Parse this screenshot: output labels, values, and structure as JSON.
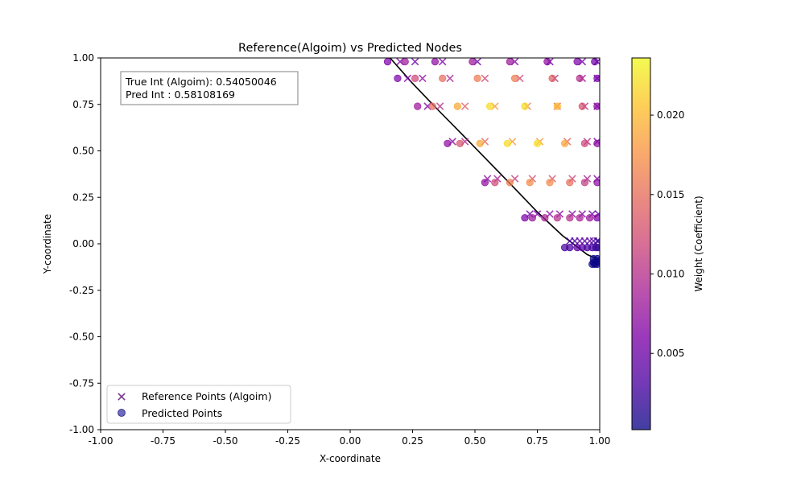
{
  "chart_data": {
    "type": "scatter",
    "title": "Reference(Algoim) vs Predicted Nodes",
    "xlabel": "X-coordinate",
    "ylabel": "Y-coordinate",
    "xlim": [
      -1.0,
      1.0
    ],
    "ylim": [
      -1.0,
      1.0
    ],
    "x_ticks": [
      "-1.00",
      "-0.75",
      "-0.50",
      "-0.25",
      "0.00",
      "0.25",
      "0.50",
      "0.75",
      "1.00"
    ],
    "y_ticks": [
      "-1.00",
      "-0.75",
      "-0.50",
      "-0.25",
      "0.00",
      "0.25",
      "0.50",
      "0.75",
      "1.00"
    ],
    "grid": false,
    "legend_position": "lower-left",
    "annotation": [
      "True Int (Algoim): 0.54050046",
      "Pred Int : 0.58108169"
    ],
    "colorbar": {
      "label": "Weight (Coefficient)",
      "colormap": "plasma",
      "range": [
        0.0002,
        0.0236
      ],
      "ticks": [
        0.005,
        0.01,
        0.015,
        0.02
      ],
      "tick_labels": [
        "0.005",
        "0.010",
        "0.015",
        "0.020"
      ]
    },
    "boundary_curve": {
      "color": "#000000",
      "x": [
        0.16,
        0.25,
        0.35,
        0.45,
        0.55,
        0.65,
        0.75,
        0.85,
        0.95,
        1.0
      ],
      "y": [
        1.0,
        0.863,
        0.723,
        0.587,
        0.449,
        0.311,
        0.171,
        0.045,
        -0.058,
        -0.087
      ]
    },
    "series": [
      {
        "name": "Reference Points (Algoim)",
        "marker": "x",
        "points": [
          {
            "x": 0.2,
            "y": 0.98,
            "w": 0.006
          },
          {
            "x": 0.26,
            "y": 0.98,
            "w": 0.005
          },
          {
            "x": 0.37,
            "y": 0.98,
            "w": 0.006
          },
          {
            "x": 0.51,
            "y": 0.98,
            "w": 0.005
          },
          {
            "x": 0.66,
            "y": 0.98,
            "w": 0.006
          },
          {
            "x": 0.8,
            "y": 0.98,
            "w": 0.005
          },
          {
            "x": 0.93,
            "y": 0.98,
            "w": 0.005
          },
          {
            "x": 0.99,
            "y": 0.98,
            "w": 0.004
          },
          {
            "x": 0.23,
            "y": 0.89,
            "w": 0.006
          },
          {
            "x": 0.29,
            "y": 0.89,
            "w": 0.007
          },
          {
            "x": 0.4,
            "y": 0.89,
            "w": 0.009
          },
          {
            "x": 0.54,
            "y": 0.89,
            "w": 0.012
          },
          {
            "x": 0.68,
            "y": 0.89,
            "w": 0.012
          },
          {
            "x": 0.82,
            "y": 0.89,
            "w": 0.01
          },
          {
            "x": 0.93,
            "y": 0.89,
            "w": 0.008
          },
          {
            "x": 0.99,
            "y": 0.89,
            "w": 0.005
          },
          {
            "x": 0.31,
            "y": 0.74,
            "w": 0.006
          },
          {
            "x": 0.36,
            "y": 0.74,
            "w": 0.01
          },
          {
            "x": 0.46,
            "y": 0.74,
            "w": 0.014
          },
          {
            "x": 0.58,
            "y": 0.74,
            "w": 0.018
          },
          {
            "x": 0.71,
            "y": 0.74,
            "w": 0.016
          },
          {
            "x": 0.83,
            "y": 0.74,
            "w": 0.014
          },
          {
            "x": 0.94,
            "y": 0.74,
            "w": 0.01
          },
          {
            "x": 0.99,
            "y": 0.74,
            "w": 0.006
          },
          {
            "x": 0.41,
            "y": 0.55,
            "w": 0.007
          },
          {
            "x": 0.46,
            "y": 0.55,
            "w": 0.01
          },
          {
            "x": 0.54,
            "y": 0.55,
            "w": 0.015
          },
          {
            "x": 0.65,
            "y": 0.55,
            "w": 0.018
          },
          {
            "x": 0.76,
            "y": 0.55,
            "w": 0.018
          },
          {
            "x": 0.87,
            "y": 0.55,
            "w": 0.014
          },
          {
            "x": 0.95,
            "y": 0.55,
            "w": 0.01
          },
          {
            "x": 0.99,
            "y": 0.55,
            "w": 0.006
          },
          {
            "x": 0.55,
            "y": 0.35,
            "w": 0.007
          },
          {
            "x": 0.59,
            "y": 0.35,
            "w": 0.009
          },
          {
            "x": 0.66,
            "y": 0.35,
            "w": 0.011
          },
          {
            "x": 0.73,
            "y": 0.35,
            "w": 0.013
          },
          {
            "x": 0.81,
            "y": 0.35,
            "w": 0.013
          },
          {
            "x": 0.89,
            "y": 0.35,
            "w": 0.012
          },
          {
            "x": 0.95,
            "y": 0.35,
            "w": 0.009
          },
          {
            "x": 0.99,
            "y": 0.35,
            "w": 0.006
          },
          {
            "x": 0.72,
            "y": 0.16,
            "w": 0.005
          },
          {
            "x": 0.75,
            "y": 0.16,
            "w": 0.006
          },
          {
            "x": 0.8,
            "y": 0.16,
            "w": 0.007
          },
          {
            "x": 0.84,
            "y": 0.16,
            "w": 0.007
          },
          {
            "x": 0.89,
            "y": 0.16,
            "w": 0.007
          },
          {
            "x": 0.93,
            "y": 0.16,
            "w": 0.006
          },
          {
            "x": 0.97,
            "y": 0.16,
            "w": 0.005
          },
          {
            "x": 0.995,
            "y": 0.16,
            "w": 0.004
          },
          {
            "x": 0.88,
            "y": 0.015,
            "w": 0.003
          },
          {
            "x": 0.9,
            "y": 0.015,
            "w": 0.003
          },
          {
            "x": 0.92,
            "y": 0.015,
            "w": 0.004
          },
          {
            "x": 0.94,
            "y": 0.015,
            "w": 0.004
          },
          {
            "x": 0.96,
            "y": 0.015,
            "w": 0.004
          },
          {
            "x": 0.975,
            "y": 0.015,
            "w": 0.003
          },
          {
            "x": 0.99,
            "y": 0.015,
            "w": 0.003
          },
          {
            "x": 0.995,
            "y": 0.015,
            "w": 0.002
          }
        ]
      },
      {
        "name": "Predicted Points",
        "marker": "o",
        "points": [
          {
            "x": 0.15,
            "y": 0.98,
            "w": 0.006
          },
          {
            "x": 0.22,
            "y": 0.98,
            "w": 0.008
          },
          {
            "x": 0.34,
            "y": 0.98,
            "w": 0.007
          },
          {
            "x": 0.49,
            "y": 0.98,
            "w": 0.008
          },
          {
            "x": 0.64,
            "y": 0.98,
            "w": 0.008
          },
          {
            "x": 0.79,
            "y": 0.98,
            "w": 0.007
          },
          {
            "x": 0.91,
            "y": 0.98,
            "w": 0.006
          },
          {
            "x": 0.98,
            "y": 0.98,
            "w": 0.005
          },
          {
            "x": 0.19,
            "y": 0.89,
            "w": 0.006
          },
          {
            "x": 0.26,
            "y": 0.89,
            "w": 0.012
          },
          {
            "x": 0.37,
            "y": 0.89,
            "w": 0.015
          },
          {
            "x": 0.51,
            "y": 0.89,
            "w": 0.016
          },
          {
            "x": 0.66,
            "y": 0.89,
            "w": 0.016
          },
          {
            "x": 0.81,
            "y": 0.89,
            "w": 0.014
          },
          {
            "x": 0.92,
            "y": 0.89,
            "w": 0.01
          },
          {
            "x": 0.99,
            "y": 0.89,
            "w": 0.006
          },
          {
            "x": 0.27,
            "y": 0.74,
            "w": 0.008
          },
          {
            "x": 0.33,
            "y": 0.74,
            "w": 0.015
          },
          {
            "x": 0.43,
            "y": 0.74,
            "w": 0.019
          },
          {
            "x": 0.56,
            "y": 0.74,
            "w": 0.022
          },
          {
            "x": 0.7,
            "y": 0.74,
            "w": 0.022
          },
          {
            "x": 0.83,
            "y": 0.74,
            "w": 0.02
          },
          {
            "x": 0.93,
            "y": 0.74,
            "w": 0.013
          },
          {
            "x": 0.99,
            "y": 0.74,
            "w": 0.007
          },
          {
            "x": 0.39,
            "y": 0.54,
            "w": 0.007
          },
          {
            "x": 0.44,
            "y": 0.54,
            "w": 0.013
          },
          {
            "x": 0.52,
            "y": 0.54,
            "w": 0.019
          },
          {
            "x": 0.63,
            "y": 0.54,
            "w": 0.022
          },
          {
            "x": 0.75,
            "y": 0.54,
            "w": 0.022
          },
          {
            "x": 0.86,
            "y": 0.54,
            "w": 0.019
          },
          {
            "x": 0.94,
            "y": 0.54,
            "w": 0.012
          },
          {
            "x": 0.99,
            "y": 0.54,
            "w": 0.007
          },
          {
            "x": 0.54,
            "y": 0.33,
            "w": 0.007
          },
          {
            "x": 0.58,
            "y": 0.33,
            "w": 0.012
          },
          {
            "x": 0.64,
            "y": 0.33,
            "w": 0.016
          },
          {
            "x": 0.72,
            "y": 0.33,
            "w": 0.017
          },
          {
            "x": 0.8,
            "y": 0.33,
            "w": 0.017
          },
          {
            "x": 0.88,
            "y": 0.33,
            "w": 0.015
          },
          {
            "x": 0.94,
            "y": 0.33,
            "w": 0.011
          },
          {
            "x": 0.99,
            "y": 0.33,
            "w": 0.007
          },
          {
            "x": 0.7,
            "y": 0.14,
            "w": 0.006
          },
          {
            "x": 0.73,
            "y": 0.14,
            "w": 0.008
          },
          {
            "x": 0.78,
            "y": 0.14,
            "w": 0.009
          },
          {
            "x": 0.83,
            "y": 0.14,
            "w": 0.01
          },
          {
            "x": 0.88,
            "y": 0.14,
            "w": 0.01
          },
          {
            "x": 0.92,
            "y": 0.14,
            "w": 0.009
          },
          {
            "x": 0.96,
            "y": 0.14,
            "w": 0.008
          },
          {
            "x": 0.99,
            "y": 0.14,
            "w": 0.006
          },
          {
            "x": 0.86,
            "y": -0.02,
            "w": 0.003
          },
          {
            "x": 0.88,
            "y": -0.02,
            "w": 0.003
          },
          {
            "x": 0.91,
            "y": -0.02,
            "w": 0.004
          },
          {
            "x": 0.93,
            "y": -0.02,
            "w": 0.004
          },
          {
            "x": 0.95,
            "y": -0.02,
            "w": 0.003
          },
          {
            "x": 0.97,
            "y": -0.02,
            "w": 0.003
          },
          {
            "x": 0.985,
            "y": -0.02,
            "w": 0.002
          },
          {
            "x": 0.995,
            "y": -0.02,
            "w": 0.002
          },
          {
            "x": 0.97,
            "y": -0.11,
            "w": 0.0002
          },
          {
            "x": 0.975,
            "y": -0.1,
            "w": 0.0002
          },
          {
            "x": 0.98,
            "y": -0.11,
            "w": 0.0002
          },
          {
            "x": 0.985,
            "y": -0.1,
            "w": 0.0002
          },
          {
            "x": 0.99,
            "y": -0.11,
            "w": 0.0002
          },
          {
            "x": 0.995,
            "y": -0.1,
            "w": 0.0002
          },
          {
            "x": 0.975,
            "y": -0.08,
            "w": 0.0002
          },
          {
            "x": 0.99,
            "y": -0.08,
            "w": 0.0002
          },
          {
            "x": 0.998,
            "y": -0.09,
            "w": 0.0002
          }
        ]
      }
    ]
  }
}
